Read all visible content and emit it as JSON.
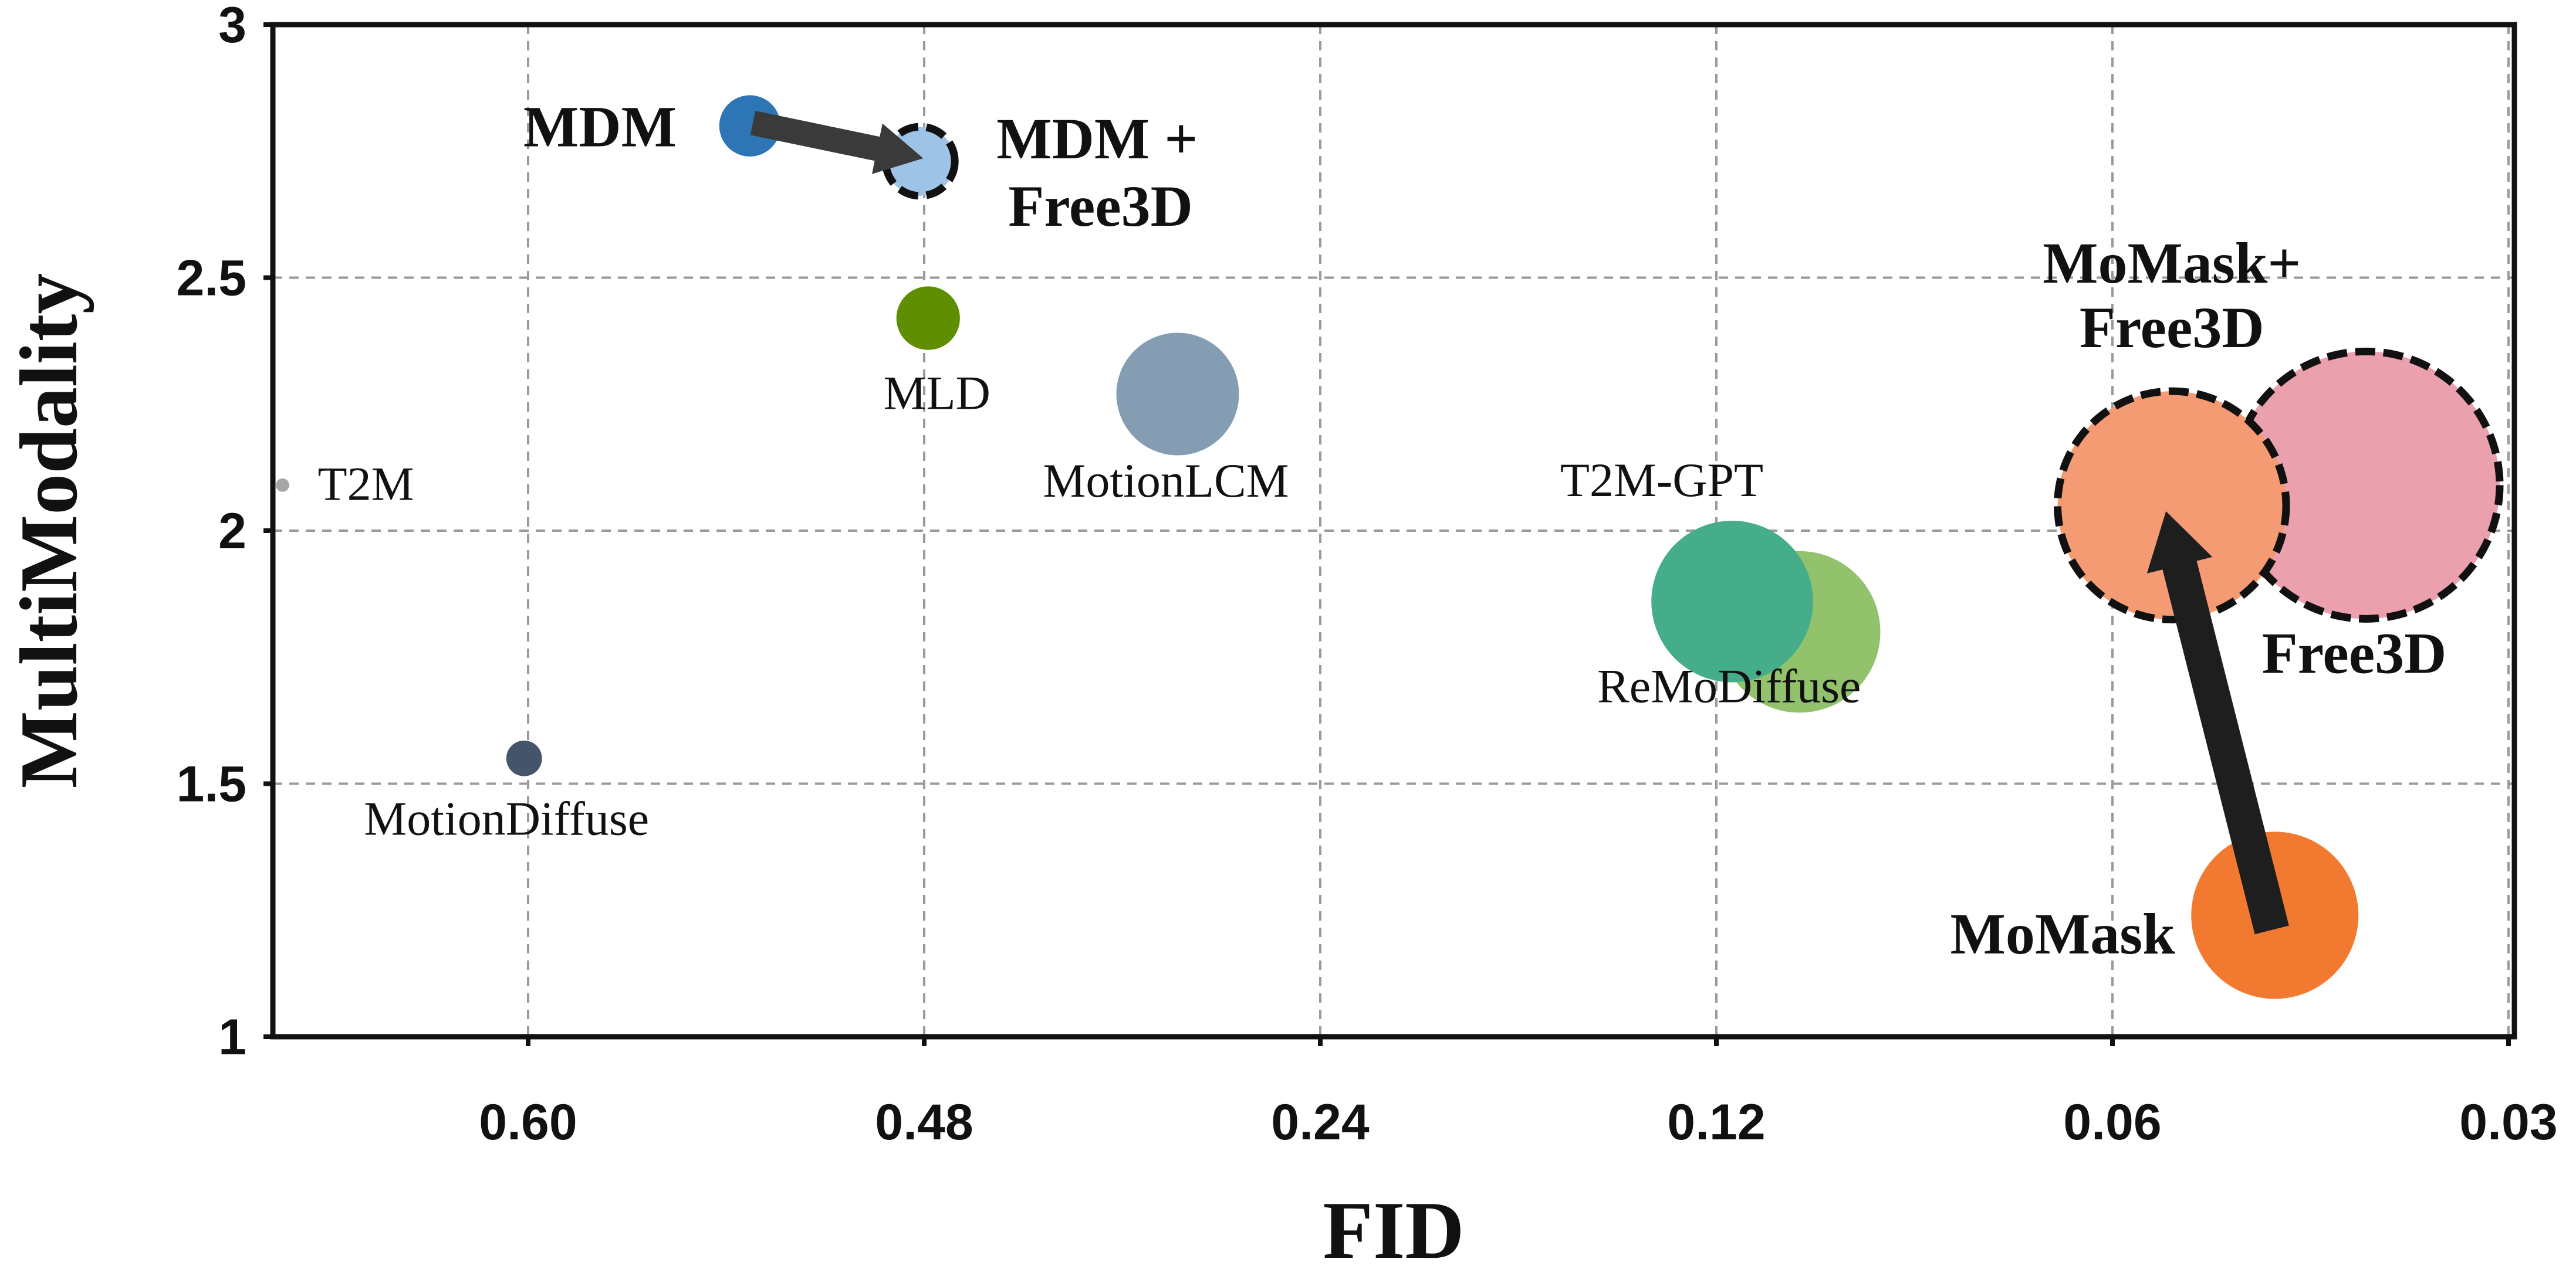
{
  "chart_data": {
    "type": "scatter",
    "title": "",
    "xlabel": "FID",
    "ylabel": "MultiModality",
    "x_scale": "categorical (reversed, non-linear)",
    "x_ticks": [
      "0.60",
      "0.48",
      "0.24",
      "0.12",
      "0.06",
      "0.03"
    ],
    "y_ticks": [
      "1",
      "1.5",
      "2",
      "2.5",
      "3"
    ],
    "ylim": [
      1,
      3
    ],
    "grid": true,
    "points": [
      {
        "name": "T2M",
        "label": "T2M",
        "x_pos": -0.62,
        "multimodality": 2.09,
        "size": 0.12,
        "color": "#a6a6a6",
        "highlight": false
      },
      {
        "name": "MotionDiffuse",
        "label": "MotionDiffuse",
        "x_pos": -0.01,
        "multimodality": 1.55,
        "size": 0.32,
        "color": "#44546a",
        "highlight": false
      },
      {
        "name": "MDM",
        "label": "MDM",
        "x_pos": 0.56,
        "multimodality": 2.8,
        "size": 0.55,
        "color": "#2e75b6",
        "highlight": false
      },
      {
        "name": "MDM + Free3D",
        "label": "MDM +|Free3D",
        "x_pos": 0.99,
        "multimodality": 2.73,
        "size": 0.62,
        "color": "#9dc3e6",
        "highlight": true
      },
      {
        "name": "MLD",
        "label": "MLD",
        "x_pos": 1.01,
        "multimodality": 2.42,
        "size": 0.57,
        "color": "#5f8f00",
        "highlight": false
      },
      {
        "name": "MotionLCM",
        "label": "MotionLCM",
        "x_pos": 1.64,
        "multimodality": 2.27,
        "size": 1.1,
        "color": "#849db3",
        "highlight": false
      },
      {
        "name": "ReMoDiffuse",
        "label": "ReMoDiffuse",
        "x_pos": 3.21,
        "multimodality": 1.8,
        "size": 1.45,
        "color": "#93c26d",
        "highlight": false
      },
      {
        "name": "T2M-GPT",
        "label": "T2M-GPT",
        "x_pos": 3.04,
        "multimodality": 1.86,
        "size": 1.45,
        "color": "#45ad8a",
        "highlight": false
      },
      {
        "name": "MoMask",
        "label": "MoMask",
        "x_pos": 4.41,
        "multimodality": 1.24,
        "size": 1.5,
        "color": "#f27a30",
        "highlight": false
      },
      {
        "name": "Free3D",
        "label": "Free3D",
        "x_pos": 4.64,
        "multimodality": 2.09,
        "size": 2.4,
        "color": "#eaa0ad",
        "highlight": true
      },
      {
        "name": "MoMask+Free3D",
        "label": "MoMask+|Free3D",
        "x_pos": 4.15,
        "multimodality": 2.05,
        "size": 2.05,
        "color": "#f49b74",
        "highlight": true
      }
    ],
    "arrows": [
      {
        "from": "MDM",
        "to": "MDM + Free3D"
      },
      {
        "from": "MoMask",
        "to": "MoMask+Free3D"
      }
    ]
  }
}
